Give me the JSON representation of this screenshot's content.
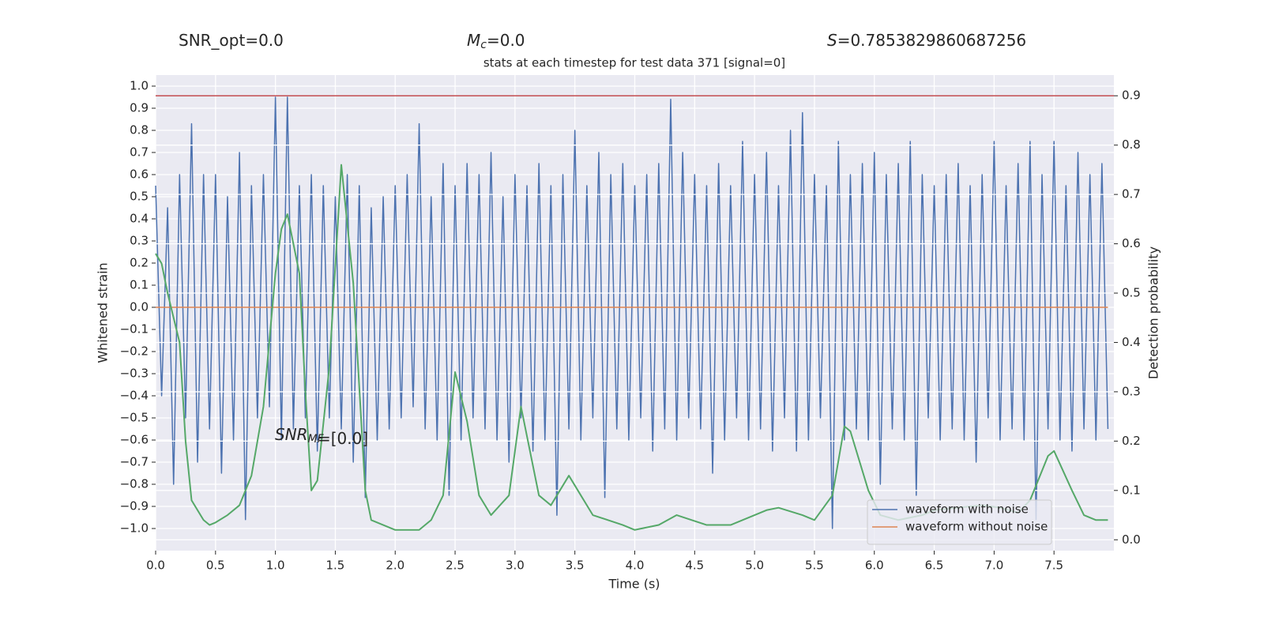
{
  "chart_data": {
    "type": "line",
    "title": "stats at each timestep for test data 371 [signal=0]",
    "xlabel": "Time (s)",
    "ylabel": "Whitened strain",
    "y2label": "Detection probability",
    "annotations": [
      {
        "text": "SNR_opt=0.0"
      },
      {
        "symbol": "M",
        "subscript": "c",
        "text": "=0.0"
      },
      {
        "symbol": "S",
        "text": "=0.7853829860687256"
      },
      {
        "symbol": "SNR",
        "subscript": "MF",
        "text": "=[0.0]"
      }
    ],
    "xlim": [
      0,
      8.0
    ],
    "ylim": [
      -1.1,
      1.05
    ],
    "y2lim": [
      -0.022,
      0.942
    ],
    "xticks": [
      {
        "value": 0,
        "label": "0.0"
      },
      {
        "value": 0.5,
        "label": "0.5"
      },
      {
        "value": 1,
        "label": "1.0"
      },
      {
        "value": 1.5,
        "label": "1.5"
      },
      {
        "value": 2,
        "label": "2.0"
      },
      {
        "value": 2.5,
        "label": "2.5"
      },
      {
        "value": 3,
        "label": "3.0"
      },
      {
        "value": 3.5,
        "label": "3.5"
      },
      {
        "value": 4,
        "label": "4.0"
      },
      {
        "value": 4.5,
        "label": "4.5"
      },
      {
        "value": 5,
        "label": "5.0"
      },
      {
        "value": 5.5,
        "label": "5.5"
      },
      {
        "value": 6,
        "label": "6.0"
      },
      {
        "value": 6.5,
        "label": "6.5"
      },
      {
        "value": 7,
        "label": "7.0"
      },
      {
        "value": 7.5,
        "label": "7.5"
      }
    ],
    "yticks": [
      {
        "value": -1,
        "label": "−1.0"
      },
      {
        "value": -0.9,
        "label": "−0.9"
      },
      {
        "value": -0.8,
        "label": "−0.8"
      },
      {
        "value": -0.7,
        "label": "−0.7"
      },
      {
        "value": -0.6,
        "label": "−0.6"
      },
      {
        "value": -0.5,
        "label": "−0.5"
      },
      {
        "value": -0.4,
        "label": "−0.4"
      },
      {
        "value": -0.3,
        "label": "−0.3"
      },
      {
        "value": -0.2,
        "label": "−0.2"
      },
      {
        "value": -0.1,
        "label": "−0.1"
      },
      {
        "value": 0,
        "label": "0.0"
      },
      {
        "value": 0.1,
        "label": "0.1"
      },
      {
        "value": 0.2,
        "label": "0.2"
      },
      {
        "value": 0.3,
        "label": "0.3"
      },
      {
        "value": 0.4,
        "label": "0.4"
      },
      {
        "value": 0.5,
        "label": "0.5"
      },
      {
        "value": 0.6,
        "label": "0.6"
      },
      {
        "value": 0.7,
        "label": "0.7"
      },
      {
        "value": 0.8,
        "label": "0.8"
      },
      {
        "value": 0.9,
        "label": "0.9"
      },
      {
        "value": 1,
        "label": "1.0"
      }
    ],
    "y2ticks": [
      {
        "value": 0,
        "label": "0.0"
      },
      {
        "value": 0.1,
        "label": "0.1"
      },
      {
        "value": 0.2,
        "label": "0.2"
      },
      {
        "value": 0.3,
        "label": "0.3"
      },
      {
        "value": 0.4,
        "label": "0.4"
      },
      {
        "value": 0.5,
        "label": "0.5"
      },
      {
        "value": 0.6,
        "label": "0.6"
      },
      {
        "value": 0.7,
        "label": "0.7"
      },
      {
        "value": 0.8,
        "label": "0.8"
      },
      {
        "value": 0.9,
        "label": "0.9"
      }
    ],
    "grid": true,
    "legend": "lower right",
    "hline": {
      "value": 0.9,
      "axis": "y2",
      "color": "#c44e52"
    },
    "series": [
      {
        "name": "waveform with noise",
        "color": "#4c72b0",
        "x": [
          0,
          0.05,
          0.1,
          0.15,
          0.2,
          0.25,
          0.3,
          0.35,
          0.4,
          0.45,
          0.5,
          0.55,
          0.6,
          0.65,
          0.7,
          0.75,
          0.8,
          0.85,
          0.9,
          0.95,
          1,
          1.05,
          1.1,
          1.15,
          1.2,
          1.25,
          1.3,
          1.35,
          1.4,
          1.45,
          1.5,
          1.55,
          1.6,
          1.65,
          1.7,
          1.75,
          1.8,
          1.85,
          1.9,
          1.95,
          2,
          2.05,
          2.1,
          2.15,
          2.2,
          2.25,
          2.3,
          2.35,
          2.4,
          2.45,
          2.5,
          2.55,
          2.6,
          2.65,
          2.7,
          2.75,
          2.8,
          2.85,
          2.9,
          2.95,
          3,
          3.05,
          3.1,
          3.15,
          3.2,
          3.25,
          3.3,
          3.35,
          3.4,
          3.45,
          3.5,
          3.55,
          3.6,
          3.65,
          3.7,
          3.75,
          3.8,
          3.85,
          3.9,
          3.95,
          4,
          4.05,
          4.1,
          4.15,
          4.2,
          4.25,
          4.3,
          4.35,
          4.4,
          4.45,
          4.5,
          4.55,
          4.6,
          4.65,
          4.7,
          4.75,
          4.8,
          4.85,
          4.9,
          4.95,
          5,
          5.05,
          5.1,
          5.15,
          5.2,
          5.25,
          5.3,
          5.35,
          5.4,
          5.45,
          5.5,
          5.55,
          5.6,
          5.65,
          5.7,
          5.75,
          5.8,
          5.85,
          5.9,
          5.95,
          6,
          6.05,
          6.1,
          6.15,
          6.2,
          6.25,
          6.3,
          6.35,
          6.4,
          6.45,
          6.5,
          6.55,
          6.6,
          6.65,
          6.7,
          6.75,
          6.8,
          6.85,
          6.9,
          6.95,
          7,
          7.05,
          7.1,
          7.15,
          7.2,
          7.25,
          7.3,
          7.35,
          7.4,
          7.45,
          7.5,
          7.55,
          7.6,
          7.65,
          7.7,
          7.75,
          7.8,
          7.85,
          7.9,
          7.95
        ],
        "values": [
          0.55,
          -0.4,
          0.45,
          -0.8,
          0.6,
          -0.5,
          0.83,
          -0.7,
          0.6,
          -0.55,
          0.6,
          -0.75,
          0.5,
          -0.6,
          0.7,
          -0.96,
          0.55,
          -0.5,
          0.6,
          -0.45,
          0.95,
          -0.6,
          0.95,
          -0.55,
          0.55,
          -0.5,
          0.6,
          -0.65,
          0.55,
          -0.5,
          0.5,
          -0.55,
          0.6,
          -0.7,
          0.55,
          -0.86,
          0.45,
          -0.6,
          0.5,
          -0.55,
          0.55,
          -0.5,
          0.6,
          -0.45,
          0.83,
          -0.55,
          0.5,
          -0.6,
          0.65,
          -0.85,
          0.55,
          -0.6,
          0.65,
          -0.5,
          0.6,
          -0.55,
          0.7,
          -0.6,
          0.5,
          -0.7,
          0.6,
          -0.5,
          0.55,
          -0.65,
          0.65,
          -0.6,
          0.55,
          -0.94,
          0.6,
          -0.55,
          0.8,
          -0.6,
          0.55,
          -0.5,
          0.7,
          -0.86,
          0.6,
          -0.55,
          0.65,
          -0.6,
          0.55,
          -0.5,
          0.6,
          -0.65,
          0.65,
          -0.55,
          0.94,
          -0.6,
          0.7,
          -0.5,
          0.6,
          -0.55,
          0.55,
          -0.75,
          0.65,
          -0.6,
          0.55,
          -0.5,
          0.75,
          -0.6,
          0.6,
          -0.55,
          0.7,
          -0.65,
          0.55,
          -0.5,
          0.8,
          -0.65,
          0.88,
          -0.6,
          0.6,
          -0.5,
          0.55,
          -1.0,
          0.75,
          -0.6,
          0.6,
          -0.55,
          0.65,
          -0.6,
          0.7,
          -0.8,
          0.6,
          -0.55,
          0.65,
          -0.6,
          0.75,
          -0.85,
          0.6,
          -0.5,
          0.55,
          -0.6,
          0.6,
          -0.55,
          0.65,
          -0.6,
          0.55,
          -0.7,
          0.6,
          -0.5,
          0.75,
          -0.6,
          0.55,
          -0.55,
          0.65,
          -0.6,
          0.75,
          -0.96,
          0.6,
          -0.55,
          0.75,
          -0.6,
          0.55,
          -0.65,
          0.7,
          -0.55,
          0.6,
          -0.6,
          0.65,
          -0.55
        ]
      },
      {
        "name": "waveform without noise",
        "color": "#dd8452",
        "x": [
          0,
          7.95
        ],
        "values": [
          0,
          0
        ]
      },
      {
        "color": "#55a868",
        "axis": "y2",
        "x": [
          0,
          0.05,
          0.1,
          0.2,
          0.25,
          0.3,
          0.4,
          0.45,
          0.5,
          0.6,
          0.7,
          0.8,
          0.9,
          1.0,
          1.05,
          1.1,
          1.2,
          1.25,
          1.3,
          1.35,
          1.45,
          1.55,
          1.65,
          1.75,
          1.8,
          1.9,
          2.0,
          2.2,
          2.3,
          2.4,
          2.5,
          2.6,
          2.7,
          2.8,
          2.95,
          3.05,
          3.2,
          3.3,
          3.45,
          3.55,
          3.65,
          3.9,
          4.0,
          4.2,
          4.35,
          4.6,
          4.8,
          5.0,
          5.1,
          5.2,
          5.4,
          5.5,
          5.65,
          5.75,
          5.8,
          5.95,
          6.05,
          6.2,
          6.4,
          6.5,
          6.7,
          6.9,
          7.05,
          7.2,
          7.3,
          7.45,
          7.5,
          7.65,
          7.75,
          7.85,
          7.95
        ],
        "values": [
          0.58,
          0.56,
          0.5,
          0.4,
          0.2,
          0.08,
          0.04,
          0.03,
          0.035,
          0.05,
          0.07,
          0.13,
          0.27,
          0.54,
          0.63,
          0.66,
          0.54,
          0.3,
          0.1,
          0.12,
          0.35,
          0.76,
          0.52,
          0.1,
          0.04,
          0.03,
          0.02,
          0.02,
          0.04,
          0.09,
          0.34,
          0.24,
          0.09,
          0.05,
          0.09,
          0.27,
          0.09,
          0.07,
          0.13,
          0.09,
          0.05,
          0.03,
          0.02,
          0.03,
          0.05,
          0.03,
          0.03,
          0.05,
          0.06,
          0.065,
          0.05,
          0.04,
          0.09,
          0.23,
          0.22,
          0.1,
          0.05,
          0.04,
          0.05,
          0.06,
          0.065,
          0.07,
          0.065,
          0.055,
          0.08,
          0.17,
          0.18,
          0.1,
          0.05,
          0.04,
          0.04
        ]
      }
    ]
  }
}
